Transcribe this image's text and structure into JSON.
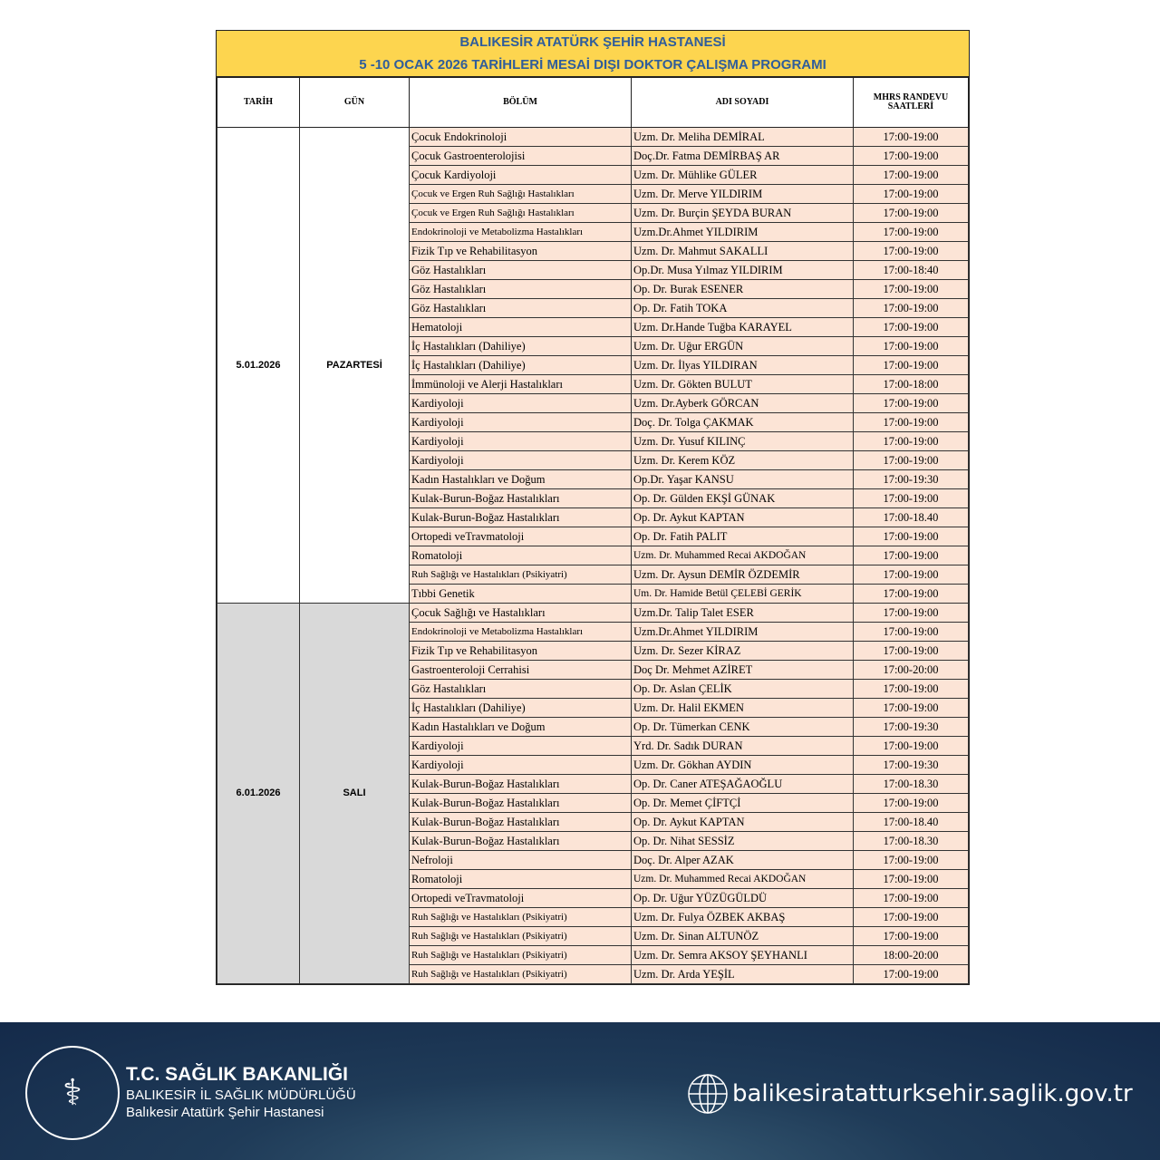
{
  "title": {
    "line1": "BALIKESİR ATATÜRK ŞEHİR HASTANESİ",
    "line2": "5 -10 OCAK 2026 TARİHLERİ MESAİ DIŞI DOKTOR ÇALIŞMA PROGRAMI"
  },
  "headers": {
    "date": "TARİH",
    "day": "GÜN",
    "dept": "BÖLÜM",
    "name": "ADI SOYADI",
    "time": "MHRS RANDEVU SAATLERİ"
  },
  "groups": [
    {
      "date": "5.01.2026",
      "day": "PAZARTESİ",
      "rows": [
        [
          "Çocuk Endokrinoloji",
          "Uzm. Dr. Meliha DEMİRAL",
          "17:00-19:00"
        ],
        [
          "Çocuk Gastroenterolojisi",
          "Doç.Dr. Fatma DEMİRBAŞ AR",
          "17:00-19:00"
        ],
        [
          "Çocuk Kardiyoloji",
          "Uzm. Dr. Mühlike GÜLER",
          "17:00-19:00"
        ],
        [
          "Çocuk ve Ergen  Ruh Sağlığı Hastalıkları",
          "Uzm. Dr. Merve YILDIRIM",
          "17:00-19:00"
        ],
        [
          "Çocuk ve Ergen  Ruh Sağlığı Hastalıkları",
          "Uzm. Dr. Burçin ŞEYDA BURAN",
          "17:00-19:00"
        ],
        [
          "Endokrinoloji ve Metabolizma Hastalıkları",
          "Uzm.Dr.Ahmet YILDIRIM",
          "17:00-19:00"
        ],
        [
          "Fizik Tıp ve Rehabilitasyon",
          "Uzm. Dr. Mahmut SAKALLI",
          "17:00-19:00"
        ],
        [
          "Göz Hastalıkları",
          "Op.Dr. Musa Yılmaz YILDIRIM",
          "17:00-18:40"
        ],
        [
          "Göz Hastalıkları",
          "Op. Dr. Burak ESENER",
          "17:00-19:00"
        ],
        [
          "Göz Hastalıkları",
          "Op. Dr. Fatih TOKA",
          "17:00-19:00"
        ],
        [
          "Hematoloji",
          "Uzm. Dr.Hande Tuğba KARAYEL",
          "17:00-19:00"
        ],
        [
          "İç Hastalıkları  (Dahiliye)",
          "Uzm. Dr. Uğur ERGÜN",
          "17:00-19:00"
        ],
        [
          "İç Hastalıkları  (Dahiliye)",
          "Uzm. Dr. İlyas YILDIRAN",
          "17:00-19:00"
        ],
        [
          "İmmünoloji ve Alerji Hastalıkları",
          "Uzm. Dr. Gökten BULUT",
          "17:00-18:00"
        ],
        [
          "Kardiyoloji",
          "Uzm. Dr.Ayberk GÖRCAN",
          "17:00-19:00"
        ],
        [
          "Kardiyoloji",
          "Doç. Dr. Tolga ÇAKMAK",
          "17:00-19:00"
        ],
        [
          "Kardiyoloji",
          "Uzm. Dr. Yusuf KILINÇ",
          "17:00-19:00"
        ],
        [
          "Kardiyoloji",
          "Uzm. Dr. Kerem KÖZ",
          "17:00-19:00"
        ],
        [
          "Kadın Hastalıkları ve Doğum",
          "Op.Dr. Yaşar KANSU",
          "17:00-19:30"
        ],
        [
          "Kulak-Burun-Boğaz Hastalıkları",
          "Op. Dr. Gülden EKŞİ GÜNAK",
          "17:00-19:00"
        ],
        [
          "Kulak-Burun-Boğaz Hastalıkları",
          "Op. Dr. Aykut KAPTAN",
          "17:00-18.40"
        ],
        [
          "Ortopedi veTravmatoloji",
          "Op. Dr. Fatih PALIT",
          "17:00-19:00"
        ],
        [
          "Romatoloji",
          "Uzm. Dr. Muhammed Recai AKDOĞAN",
          "17:00-19:00"
        ],
        [
          "Ruh Sağlığı ve Hastalıkları (Psikiyatri)",
          "Uzm. Dr. Aysun DEMİR ÖZDEMİR",
          "17:00-19:00"
        ],
        [
          "Tıbbi Genetik",
          "Um. Dr. Hamide Betül ÇELEBİ GERİK",
          "17:00-19:00"
        ]
      ]
    },
    {
      "date": "6.01.2026",
      "day": "SALI",
      "rows": [
        [
          "Çocuk Sağlığı ve Hastalıkları",
          "Uzm.Dr. Talip Talet ESER",
          "17:00-19:00"
        ],
        [
          "Endokrinoloji ve Metabolizma Hastalıkları",
          "Uzm.Dr.Ahmet YILDIRIM",
          "17:00-19:00"
        ],
        [
          "Fizik Tıp ve Rehabilitasyon",
          "Uzm. Dr. Sezer KİRAZ",
          "17:00-19:00"
        ],
        [
          "Gastroenteroloji Cerrahisi",
          "Doç Dr. Mehmet AZİRET",
          "17:00-20:00"
        ],
        [
          "Göz Hastalıkları",
          "Op. Dr. Aslan ÇELİK",
          "17:00-19:00"
        ],
        [
          "İç Hastalıkları  (Dahiliye)",
          "Uzm. Dr. Halil EKMEN",
          "17:00-19:00"
        ],
        [
          "Kadın Hastalıkları ve Doğum",
          "Op. Dr. Tümerkan CENK",
          "17:00-19:30"
        ],
        [
          "Kardiyoloji",
          "Yrd. Dr. Sadık DURAN",
          "17:00-19:00"
        ],
        [
          "Kardiyoloji",
          "Uzm. Dr. Gökhan AYDIN",
          "17:00-19:30"
        ],
        [
          "Kulak-Burun-Boğaz Hastalıkları",
          "Op. Dr. Caner ATEŞAĞAOĞLU",
          "17:00-18.30"
        ],
        [
          "Kulak-Burun-Boğaz Hastalıkları",
          "Op. Dr. Memet ÇİFTÇİ",
          "17:00-19:00"
        ],
        [
          "Kulak-Burun-Boğaz Hastalıkları",
          "Op. Dr. Aykut KAPTAN",
          "17:00-18.40"
        ],
        [
          "Kulak-Burun-Boğaz Hastalıkları",
          "Op. Dr. Nihat SESSİZ",
          "17:00-18.30"
        ],
        [
          "Nefroloji",
          "Doç. Dr. Alper AZAK",
          "17:00-19:00"
        ],
        [
          "Romatoloji",
          "Uzm. Dr. Muhammed Recai AKDOĞAN",
          "17:00-19:00"
        ],
        [
          "Ortopedi veTravmatoloji",
          "Op. Dr. Uğur YÜZÜGÜLDÜ",
          "17:00-19:00"
        ],
        [
          "Ruh Sağlığı ve Hastalıkları (Psikiyatri)",
          "Uzm. Dr. Fulya ÖZBEK AKBAŞ",
          "17:00-19:00"
        ],
        [
          "Ruh Sağlığı ve Hastalıkları (Psikiyatri)",
          "Uzm. Dr. Sinan ALTUNÖZ",
          "17:00-19:00"
        ],
        [
          "Ruh Sağlığı ve Hastalıkları (Psikiyatri)",
          "Uzm. Dr. Semra AKSOY ŞEYHANLI",
          "18:00-20:00"
        ],
        [
          "Ruh Sağlığı ve Hastalıkları (Psikiyatri)",
          "Uzm. Dr. Arda YEŞİL",
          "17:00-19:00"
        ]
      ]
    }
  ],
  "footer": {
    "org": "T.C. SAĞLIK BAKANLIĞI",
    "dept": "BALIKESİR İL SAĞLIK MÜDÜRLÜĞÜ",
    "hospital": "Balıkesir Atatürk Şehir Hastanesi",
    "website": "balikesiratatturksehir.saglik.gov.tr",
    "logo_icon": "ministry-of-health-emblem",
    "web_icon": "globe-icon"
  }
}
